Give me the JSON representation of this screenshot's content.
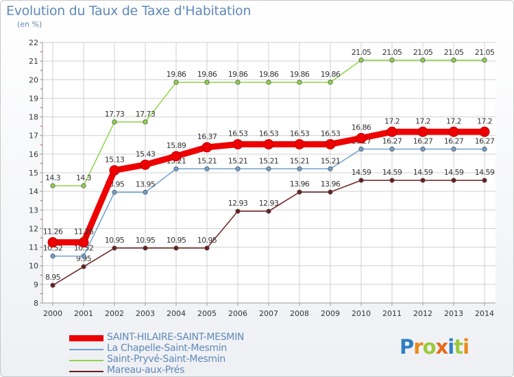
{
  "header": {
    "title": "Evolution du Taux de Taxe d'Habitation",
    "subtitle": "(en %)"
  },
  "logo": {
    "text": "Proxiti",
    "letters": [
      "P",
      "r",
      "o",
      "x",
      "i",
      "t",
      "i"
    ],
    "letter_colors": [
      "#2e7fc1",
      "#e88a1a",
      "#9bc83c",
      "#e86a1a",
      "#2e7fc1",
      "#9bc83c",
      "#e88a1a"
    ]
  },
  "chart_data": {
    "type": "line",
    "title": "Evolution du Taux de Taxe d'Habitation",
    "ylabel": "(en %)",
    "x": [
      "2000",
      "2001",
      "2002",
      "2003",
      "2004",
      "2005",
      "2006",
      "2007",
      "2008",
      "2009",
      "2010",
      "2011",
      "2012",
      "2013",
      "2014"
    ],
    "ylim": [
      8,
      22
    ],
    "yticks": [
      "8",
      "9",
      "10",
      "11",
      "12",
      "13",
      "14",
      "15",
      "16",
      "17",
      "18",
      "19",
      "20",
      "21",
      "22"
    ],
    "grid": true,
    "legend_position": "bottom-left",
    "series": [
      {
        "name": "Mareau-aux-Prés",
        "color": "#6b1d1d",
        "values": [
          8.95,
          9.95,
          10.95,
          10.95,
          10.95,
          10.95,
          12.93,
          12.93,
          13.96,
          13.96,
          14.59,
          14.59,
          14.59,
          14.59,
          14.59
        ],
        "labels": [
          "8.95",
          "9.95",
          "10.95",
          "10.95",
          "10.95",
          "10.95",
          "12.93",
          "12.93",
          "13.96",
          "13.96",
          "14.59",
          "14.59",
          "14.59",
          "14.59",
          "14.59"
        ]
      },
      {
        "name": "La Chapelle-Saint-Mesmin",
        "color": "#6fa0cf",
        "values": [
          10.52,
          10.52,
          13.95,
          13.95,
          15.21,
          15.21,
          15.21,
          15.21,
          15.21,
          15.21,
          16.27,
          16.27,
          16.27,
          16.27,
          16.27
        ],
        "labels": [
          "10.52",
          "10.52",
          "13.95",
          "13.95",
          "15.21",
          "15.21",
          "15.21",
          "15.21",
          "15.21",
          "15.21",
          "16.27",
          "16.27",
          "16.27",
          "16.27",
          "16.27"
        ]
      },
      {
        "name": "Saint-Pryvé-Saint-Mesmin",
        "color": "#8fd44a",
        "values": [
          14.3,
          14.3,
          17.73,
          17.73,
          19.86,
          19.86,
          19.86,
          19.86,
          19.86,
          19.86,
          21.05,
          21.05,
          21.05,
          21.05,
          21.05
        ],
        "labels": [
          "14.3",
          "14.3",
          "17.73",
          "17.73",
          "19.86",
          "19.86",
          "19.86",
          "19.86",
          "19.86",
          "19.86",
          "21.05",
          "21.05",
          "21.05",
          "21.05",
          "21.05"
        ]
      },
      {
        "name": "SAINT-HILAIRE-SAINT-MESMIN",
        "color": "#ee0000",
        "values": [
          11.26,
          11.26,
          15.13,
          15.43,
          15.89,
          16.37,
          16.53,
          16.53,
          16.53,
          16.53,
          16.86,
          17.2,
          17.2,
          17.2,
          17.2
        ],
        "labels": [
          "11.26",
          "11.26",
          "15.13",
          "15.43",
          "15.89",
          "16.37",
          "16.53",
          "16.53",
          "16.53",
          "16.53",
          "16.86",
          "17.2",
          "17.2",
          "17.2",
          "17.2"
        ]
      }
    ]
  },
  "legend": {
    "items": [
      {
        "label": "SAINT-HILAIRE-SAINT-MESMIN",
        "color": "#ee0000"
      },
      {
        "label": "La Chapelle-Saint-Mesmin",
        "color": "#6fa0cf"
      },
      {
        "label": "Saint-Pryvé-Saint-Mesmin",
        "color": "#8fd44a"
      },
      {
        "label": "Mareau-aux-Prés",
        "color": "#6b1d1d"
      }
    ]
  }
}
